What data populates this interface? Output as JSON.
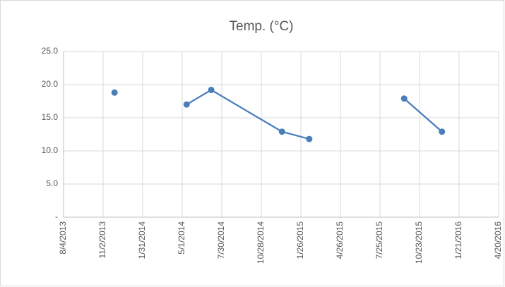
{
  "chart_data": {
    "type": "line",
    "title": "Temp. (°C)",
    "x": [
      "11/28/2013",
      "3/1/2014",
      "5/11/2014",
      "7/6/2014",
      "12/14/2014",
      "2/14/2015",
      "6/1/2015",
      "9/18/2015",
      "12/13/2015"
    ],
    "series": [
      {
        "color": "#4a7ebb",
        "values": [
          18.8,
          null,
          17.0,
          19.2,
          12.9,
          11.8,
          null,
          17.9,
          12.9
        ]
      }
    ],
    "xlim": [
      "8/4/2013",
      "4/20/2016"
    ],
    "xticks": [
      "8/4/2013",
      "11/2/2013",
      "1/31/2014",
      "5/1/2014",
      "7/30/2014",
      "10/28/2014",
      "1/26/2015",
      "4/26/2015",
      "7/25/2015",
      "10/23/2015",
      "1/21/2016",
      "4/20/2016"
    ],
    "ylim": [
      0,
      25
    ],
    "yticks": [
      {
        "value": 0,
        "label": "-"
      },
      {
        "value": 5,
        "label": "5.0"
      },
      {
        "value": 10,
        "label": "10.0"
      },
      {
        "value": 15,
        "label": "15.0"
      },
      {
        "value": 20,
        "label": "20.0"
      },
      {
        "value": 25,
        "label": "25.0"
      }
    ],
    "grid": true
  }
}
